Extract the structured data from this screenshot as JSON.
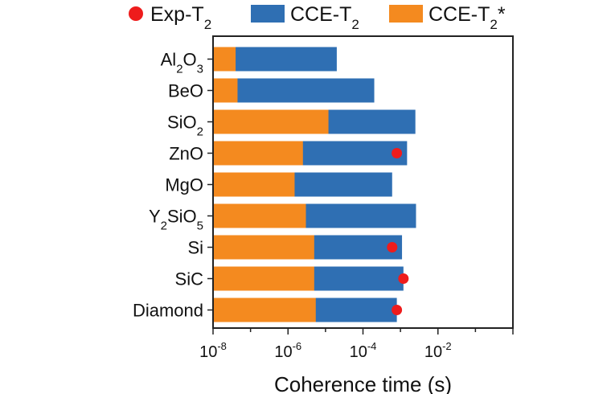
{
  "chart_data": {
    "type": "bar",
    "orientation": "horizontal",
    "stacked_overlay": true,
    "xscale": "log",
    "xlim": [
      1e-08,
      1
    ],
    "xlabel": "Coherence time (s)",
    "x_ticks": [
      {
        "value": 1e-08,
        "base": "10",
        "exp": "-8"
      },
      {
        "value": 1e-06,
        "base": "10",
        "exp": "-6"
      },
      {
        "value": 0.0001,
        "base": "10",
        "exp": "-4"
      },
      {
        "value": 0.01,
        "base": "10",
        "exp": "-2"
      }
    ],
    "categories": [
      {
        "parts": [
          {
            "t": "Al"
          },
          {
            "t": "2",
            "sub": true
          },
          {
            "t": "O"
          },
          {
            "t": "3",
            "sub": true
          }
        ]
      },
      {
        "parts": [
          {
            "t": "BeO"
          }
        ]
      },
      {
        "parts": [
          {
            "t": "SiO"
          },
          {
            "t": "2",
            "sub": true
          }
        ]
      },
      {
        "parts": [
          {
            "t": "ZnO"
          }
        ]
      },
      {
        "parts": [
          {
            "t": "MgO"
          }
        ]
      },
      {
        "parts": [
          {
            "t": "Y"
          },
          {
            "t": "2",
            "sub": true
          },
          {
            "t": "SiO"
          },
          {
            "t": "5",
            "sub": true
          }
        ]
      },
      {
        "parts": [
          {
            "t": "Si"
          }
        ]
      },
      {
        "parts": [
          {
            "t": "SiC"
          }
        ]
      },
      {
        "parts": [
          {
            "t": "Diamond"
          }
        ]
      }
    ],
    "series": [
      {
        "name": "CCE-T2",
        "kind": "bar",
        "color": "#2f6fb3",
        "legend_parts": [
          {
            "t": "CCE-T"
          },
          {
            "t": "2",
            "sub": true
          }
        ],
        "values": [
          2e-05,
          0.0002,
          0.0025,
          0.0015,
          0.0006,
          0.0026,
          0.0011,
          0.0012,
          0.0008
        ]
      },
      {
        "name": "CCE-T2*",
        "kind": "bar",
        "color": "#f48a1f",
        "legend_parts": [
          {
            "t": "CCE-T"
          },
          {
            "t": "2",
            "sub": true
          },
          {
            "t": "*"
          }
        ],
        "values": [
          4e-08,
          4.5e-08,
          1.2e-05,
          2.5e-06,
          1.5e-06,
          3e-06,
          5e-06,
          5e-06,
          5.5e-06
        ]
      },
      {
        "name": "Exp-T2",
        "kind": "point",
        "color": "#ee1c1c",
        "legend_parts": [
          {
            "t": "Exp-T"
          },
          {
            "t": "2",
            "sub": true
          }
        ],
        "values": [
          null,
          null,
          null,
          0.0008,
          null,
          null,
          0.0006,
          0.0012,
          0.0008
        ]
      }
    ],
    "legend_order": [
      "Exp-T2",
      "CCE-T2",
      "CCE-T2*"
    ],
    "legend": "top",
    "grid": false
  }
}
